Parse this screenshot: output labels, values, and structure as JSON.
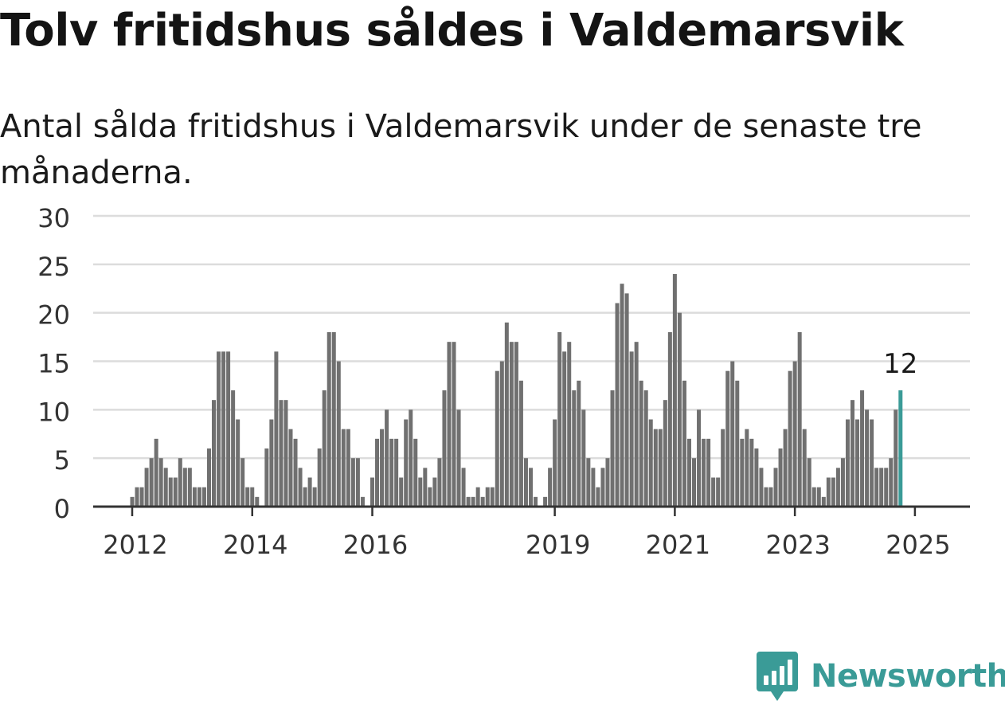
{
  "title": "Tolv fritidshus såldes i Valdemarsvik",
  "subtitle": "Antal sålda fritidshus i Valdemarsvik under de senaste tre månaderna.",
  "brand": {
    "name": "Newsworthy",
    "logo_icon": "newsworthy-chart-bubble-icon",
    "color": "#3a9b97"
  },
  "chart_data": {
    "type": "bar",
    "title": "",
    "xlabel": "",
    "ylabel": "",
    "ylim": [
      0,
      30
    ],
    "yticks": [
      0,
      5,
      10,
      15,
      20,
      25,
      30
    ],
    "grid": true,
    "x_tick_labels": [
      {
        "label": "2012",
        "index": 0
      },
      {
        "label": "2014",
        "index": 25
      },
      {
        "label": "2016",
        "index": 50
      },
      {
        "label": "2019",
        "index": 88
      },
      {
        "label": "2021",
        "index": 113
      },
      {
        "label": "2023",
        "index": 138
      },
      {
        "label": "2025",
        "index": 163
      }
    ],
    "bar_color": "#707070",
    "highlight_color": "#3a9b97",
    "highlight_label": "12",
    "values": [
      1,
      2,
      2,
      4,
      5,
      7,
      5,
      4,
      3,
      3,
      5,
      4,
      4,
      2,
      2,
      2,
      6,
      11,
      16,
      16,
      16,
      12,
      9,
      5,
      2,
      2,
      1,
      0,
      6,
      9,
      16,
      11,
      11,
      8,
      7,
      4,
      2,
      3,
      2,
      6,
      12,
      18,
      18,
      15,
      8,
      8,
      5,
      5,
      1,
      0,
      3,
      7,
      8,
      10,
      7,
      7,
      3,
      9,
      10,
      7,
      3,
      4,
      2,
      3,
      5,
      12,
      17,
      17,
      10,
      4,
      1,
      1,
      2,
      1,
      2,
      2,
      14,
      15,
      19,
      17,
      17,
      13,
      5,
      4,
      1,
      0,
      1,
      4,
      9,
      18,
      16,
      17,
      12,
      13,
      10,
      5,
      4,
      2,
      4,
      5,
      12,
      21,
      23,
      22,
      16,
      17,
      13,
      12,
      9,
      8,
      8,
      11,
      18,
      24,
      20,
      13,
      7,
      5,
      10,
      7,
      7,
      3,
      3,
      8,
      14,
      15,
      13,
      7,
      8,
      7,
      6,
      4,
      2,
      2,
      4,
      6,
      8,
      14,
      15,
      18,
      8,
      5,
      2,
      2,
      1,
      3,
      3,
      4,
      5,
      9,
      11,
      9,
      12,
      10,
      9,
      4,
      4,
      4,
      5,
      10,
      12
    ]
  }
}
